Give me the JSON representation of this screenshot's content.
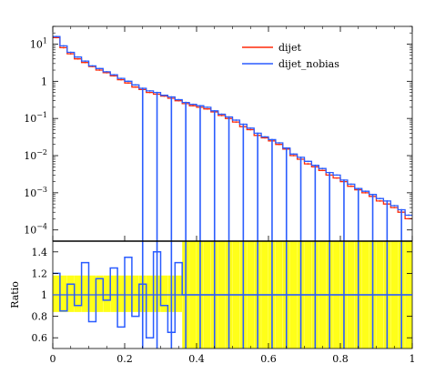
{
  "chart_data": [
    {
      "panel": "top",
      "type": "line",
      "ylog": true,
      "xlim": [
        0,
        1
      ],
      "ylim": [
        5e-05,
        30
      ],
      "yticks": [
        {
          "v": 10,
          "label": "10^1"
        },
        {
          "v": 1,
          "label": "1"
        },
        {
          "v": 0.1,
          "label": "10^-1"
        },
        {
          "v": 0.01,
          "label": "10^-2"
        },
        {
          "v": 0.001,
          "label": "10^-3"
        },
        {
          "v": 0.0001,
          "label": "10^-4"
        }
      ],
      "legend": {
        "position": "top-right"
      },
      "series": [
        {
          "name": "dijet",
          "color": "#ff2a0a",
          "x": [
            0.0,
            0.02,
            0.04,
            0.06,
            0.08,
            0.1,
            0.12,
            0.14,
            0.16,
            0.18,
            0.2,
            0.22,
            0.24,
            0.26,
            0.28,
            0.3,
            0.32,
            0.34,
            0.36,
            0.38,
            0.4,
            0.42,
            0.44,
            0.46,
            0.48,
            0.5,
            0.52,
            0.54,
            0.56,
            0.58,
            0.6,
            0.62,
            0.64,
            0.66,
            0.68,
            0.7,
            0.72,
            0.74,
            0.76,
            0.78,
            0.8,
            0.82,
            0.84,
            0.86,
            0.88,
            0.9,
            0.92,
            0.94,
            0.96,
            0.98
          ],
          "y": [
            15,
            8,
            5.5,
            4,
            3.2,
            2.5,
            2.0,
            1.7,
            1.4,
            1.1,
            0.9,
            0.7,
            0.6,
            0.5,
            0.45,
            0.4,
            0.35,
            0.3,
            0.25,
            0.22,
            0.2,
            0.18,
            0.15,
            0.12,
            0.1,
            0.08,
            0.06,
            0.05,
            0.035,
            0.03,
            0.025,
            0.02,
            0.015,
            0.01,
            0.008,
            0.006,
            0.005,
            0.004,
            0.003,
            0.0025,
            0.002,
            0.0015,
            0.0012,
            0.001,
            0.0008,
            0.0006,
            0.0005,
            0.0004,
            0.0003,
            0.0002
          ]
        },
        {
          "name": "dijet_nobias",
          "color": "#2a5cff",
          "x": [
            0.0,
            0.02,
            0.04,
            0.06,
            0.08,
            0.1,
            0.12,
            0.14,
            0.16,
            0.18,
            0.2,
            0.22,
            0.24,
            0.26,
            0.28,
            0.3,
            0.32,
            0.34,
            0.36,
            0.38,
            0.4,
            0.42,
            0.44,
            0.46,
            0.48,
            0.5,
            0.52,
            0.54,
            0.56,
            0.58,
            0.6,
            0.62,
            0.64,
            0.66,
            0.68,
            0.7,
            0.72,
            0.74,
            0.76,
            0.78,
            0.8,
            0.82,
            0.84,
            0.86,
            0.88,
            0.9,
            0.92,
            0.94,
            0.96,
            0.98
          ],
          "y": [
            16,
            9,
            6,
            4.5,
            3.5,
            2.6,
            2.2,
            1.8,
            1.5,
            1.2,
            1.0,
            0.8,
            0.65,
            0.55,
            0.5,
            0.42,
            0.38,
            0.32,
            0.27,
            0.24,
            0.22,
            0.2,
            0.16,
            0.13,
            0.11,
            0.09,
            0.07,
            0.055,
            0.04,
            0.032,
            0.027,
            0.022,
            0.016,
            0.011,
            0.009,
            0.007,
            0.0055,
            0.0045,
            0.0035,
            0.003,
            0.0022,
            0.0017,
            0.0013,
            0.0011,
            0.0009,
            0.0007,
            0.0006,
            0.00045,
            0.00035,
            0.00025
          ]
        }
      ]
    },
    {
      "panel": "ratio",
      "type": "line",
      "ylabel": "Ratio",
      "xlim": [
        0,
        1
      ],
      "ylim": [
        0.5,
        1.5
      ],
      "xticks": [
        0,
        0.2,
        0.4,
        0.6,
        0.8,
        1
      ],
      "yticks": [
        0.6,
        0.8,
        1,
        1.2,
        1.4
      ],
      "band_color": "#ffff00",
      "line_color": "#2a5cff",
      "x": [
        0.0,
        0.02,
        0.04,
        0.06,
        0.08,
        0.1,
        0.12,
        0.14,
        0.16,
        0.18,
        0.2,
        0.22,
        0.24,
        0.26,
        0.28,
        0.3,
        0.32,
        0.34,
        0.36,
        0.38,
        0.4,
        0.42,
        0.44,
        0.46,
        0.48,
        0.5,
        0.52,
        0.54,
        0.56,
        0.58,
        0.6,
        0.62,
        0.64,
        0.66,
        0.68,
        0.7,
        0.72,
        0.74,
        0.76,
        0.78,
        0.8,
        0.82,
        0.84,
        0.86,
        0.88,
        0.9,
        0.92,
        0.94,
        0.96,
        0.98
      ],
      "y": [
        1.2,
        0.85,
        1.1,
        0.9,
        1.3,
        0.75,
        1.15,
        0.95,
        1.25,
        0.7,
        1.35,
        0.8,
        1.1,
        0.6,
        1.4,
        0.9,
        0.65,
        1.3,
        1.0,
        1.0,
        1.0,
        1.0,
        1.0,
        1.0,
        1.0,
        1.0,
        1.0,
        1.0,
        1.0,
        1.0,
        1.0,
        1.0,
        1.0,
        1.0,
        1.0,
        1.0,
        1.0,
        1.0,
        1.0,
        1.0,
        1.0,
        1.0,
        1.0,
        1.0,
        1.0,
        1.0,
        1.0,
        1.0,
        1.0,
        1.0
      ]
    }
  ]
}
